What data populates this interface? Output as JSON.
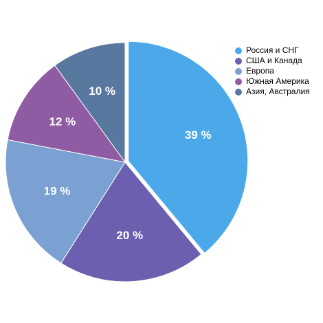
{
  "chart_data": {
    "type": "pie",
    "categories": [
      "Россия и СНГ",
      "США и Канада",
      "Европа",
      "Южная Америка",
      "Азия, Австралия"
    ],
    "values": [
      39,
      20,
      19,
      12,
      10
    ],
    "value_labels": [
      "39 %",
      "20 %",
      "19 %",
      "12 %",
      "10 %"
    ],
    "colors": [
      "#4ba9e9",
      "#6c5fb0",
      "#7aa1d2",
      "#8f5ba2",
      "#59789f"
    ],
    "explode": [
      true,
      false,
      false,
      false,
      false
    ],
    "legend": "top-right"
  }
}
